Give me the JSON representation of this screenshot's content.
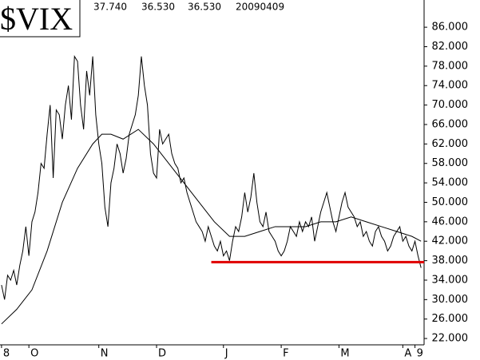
{
  "chart_data": {
    "type": "line",
    "title": "$VIX",
    "header_values": [
      "37.740",
      "36.530",
      "36.530",
      "20090409"
    ],
    "x": [
      0,
      1,
      2,
      3,
      4,
      5,
      6,
      7,
      8,
      9,
      10,
      11,
      12,
      13,
      14,
      15,
      16,
      17,
      18,
      19,
      20,
      21,
      22,
      23,
      24,
      25,
      26,
      27,
      28,
      29,
      30,
      31,
      32,
      33,
      34,
      35,
      36,
      37,
      38,
      39,
      40,
      41,
      42,
      43,
      44,
      45,
      46,
      47,
      48,
      49,
      50,
      51,
      52,
      53,
      54,
      55,
      56,
      57,
      58,
      59,
      60,
      61,
      62,
      63,
      64,
      65,
      66,
      67,
      68,
      69,
      70,
      71,
      72,
      73,
      74,
      75,
      76,
      77,
      78,
      79,
      80,
      81,
      82,
      83,
      84,
      85,
      86,
      87,
      88,
      89,
      90,
      91,
      92,
      93,
      94,
      95,
      96,
      97,
      98,
      99,
      100,
      101,
      102,
      103,
      104,
      105,
      106,
      107,
      108,
      109,
      110,
      111,
      112,
      113,
      114,
      115,
      116,
      117,
      118,
      119,
      120,
      121,
      122,
      123,
      124,
      125,
      126,
      127,
      128,
      129,
      130,
      131,
      132,
      133,
      134,
      135,
      136,
      137,
      138
    ],
    "series": [
      {
        "name": "VIX",
        "color": "#000000",
        "values": [
          33,
          30,
          35,
          34,
          36,
          33,
          37,
          40,
          45,
          39,
          46,
          48,
          52,
          58,
          57,
          64,
          70,
          55,
          69,
          68,
          63,
          70,
          74,
          67,
          80,
          79,
          70,
          65,
          77,
          72,
          80,
          68,
          62,
          58,
          49,
          45,
          54,
          57,
          62,
          60,
          56,
          59,
          64,
          66,
          68,
          72,
          80,
          74,
          70,
          60,
          56,
          55,
          65,
          62,
          63,
          64,
          60,
          58,
          57,
          54,
          55,
          52,
          50,
          48,
          46,
          45,
          44,
          42,
          45,
          43,
          41,
          40,
          42,
          39,
          40,
          38,
          42,
          45,
          44,
          47,
          52,
          48,
          51,
          56,
          50,
          46,
          45,
          48,
          44,
          43,
          42,
          40,
          39,
          40,
          42,
          45,
          44,
          43,
          46,
          44,
          46,
          45,
          47,
          42,
          45,
          48,
          50,
          52,
          49,
          46,
          44,
          47,
          50,
          52,
          49,
          48,
          47,
          45,
          46,
          43,
          44,
          42,
          41,
          44,
          45,
          43,
          42,
          40,
          41,
          43,
          44,
          45,
          42,
          43,
          41,
          40,
          42,
          39,
          36.53
        ]
      },
      {
        "name": "moving-average",
        "color": "#000000",
        "x": [
          0,
          5,
          10,
          15,
          20,
          25,
          30,
          33,
          36,
          40,
          45,
          50,
          55,
          60,
          65,
          70,
          75,
          80,
          85,
          90,
          95,
          100,
          105,
          110,
          115,
          120,
          125,
          130,
          135,
          138
        ],
        "values": [
          25,
          28,
          32,
          40,
          50,
          57,
          62,
          64,
          64,
          63,
          65,
          62,
          58,
          54,
          50,
          46,
          43,
          43,
          44,
          45,
          45,
          45,
          46,
          46,
          47,
          46,
          45,
          44,
          43,
          42
        ]
      }
    ],
    "reference_line": {
      "value": 37.7,
      "color": "#e00000",
      "x": [
        69,
        139
      ]
    },
    "xlim": [
      -0.5,
      139
    ],
    "xticks": [
      {
        "value": 0,
        "label": "8"
      },
      {
        "value": 9,
        "label": "O"
      },
      {
        "value": 32,
        "label": "N"
      },
      {
        "value": 51,
        "label": "D"
      },
      {
        "value": 73,
        "label": "J"
      },
      {
        "value": 92,
        "label": "F"
      },
      {
        "value": 111,
        "label": "M"
      },
      {
        "value": 132,
        "label": "A"
      },
      {
        "value": 136,
        "label": "9"
      }
    ],
    "ylim": [
      20.7,
      91.6
    ],
    "yticks": [
      {
        "value": 22,
        "label": "22.000"
      },
      {
        "value": 26,
        "label": "26.000"
      },
      {
        "value": 30,
        "label": "30.000"
      },
      {
        "value": 34,
        "label": "34.000"
      },
      {
        "value": 38,
        "label": "38.000"
      },
      {
        "value": 42,
        "label": "42.000"
      },
      {
        "value": 46,
        "label": "46.000"
      },
      {
        "value": 50,
        "label": "50.000"
      },
      {
        "value": 54,
        "label": "54.000"
      },
      {
        "value": 58,
        "label": "58.000"
      },
      {
        "value": 62,
        "label": "62.000"
      },
      {
        "value": 66,
        "label": "66.000"
      },
      {
        "value": 70,
        "label": "70.000"
      },
      {
        "value": 74,
        "label": "74.000"
      },
      {
        "value": 78,
        "label": "78.000"
      },
      {
        "value": 82,
        "label": "82.000"
      },
      {
        "value": 86,
        "label": "86.000"
      }
    ]
  }
}
